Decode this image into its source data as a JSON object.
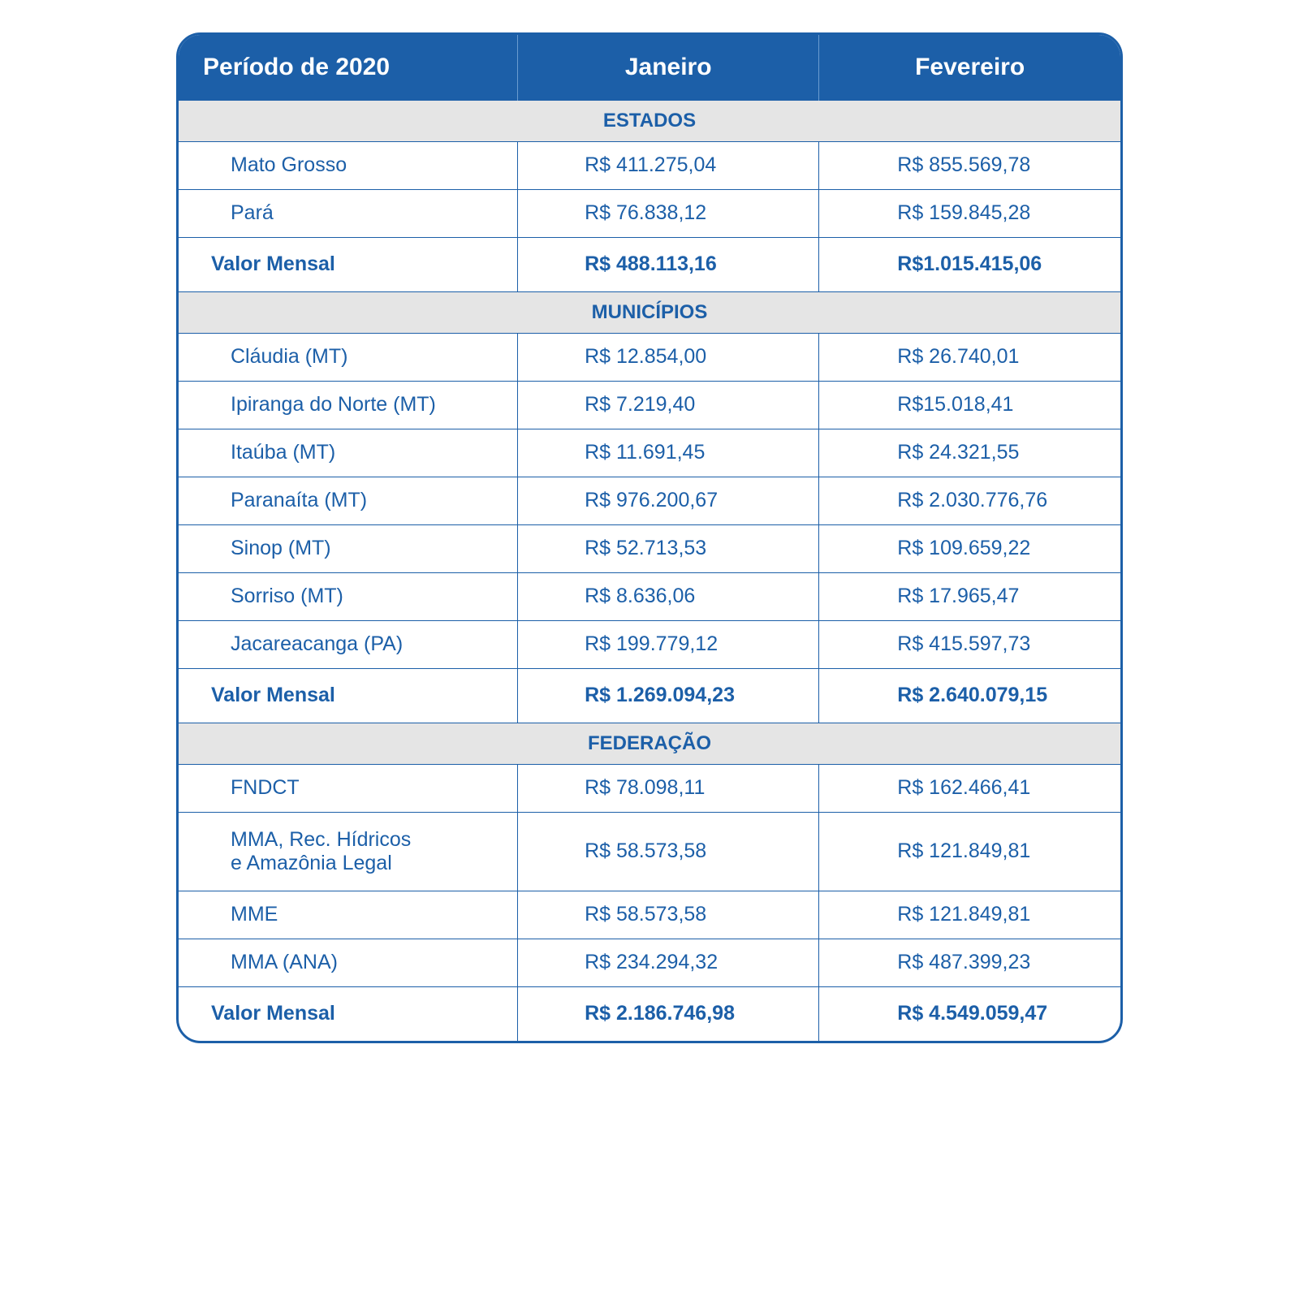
{
  "header": {
    "period": "Período de 2020",
    "col1": "Janeiro",
    "col2": "Fevereiro"
  },
  "sections": [
    {
      "title": "ESTADOS",
      "rows": [
        {
          "name": "Mato Grosso",
          "jan": "R$ 411.275,04",
          "fev": "R$ 855.569,78"
        },
        {
          "name": "Pará",
          "jan": "R$ 76.838,12",
          "fev": "R$ 159.845,28"
        }
      ],
      "total": {
        "label": "Valor Mensal",
        "jan": "R$ 488.113,16",
        "fev": "R$1.015.415,06"
      }
    },
    {
      "title": "MUNICÍPIOS",
      "rows": [
        {
          "name": "Cláudia (MT)",
          "jan": "R$ 12.854,00",
          "fev": "R$ 26.740,01"
        },
        {
          "name": "Ipiranga do Norte (MT)",
          "jan": "R$ 7.219,40",
          "fev": "R$15.018,41"
        },
        {
          "name": "Itaúba (MT)",
          "jan": "R$ 11.691,45",
          "fev": "R$ 24.321,55"
        },
        {
          "name": "Paranaíta (MT)",
          "jan": "R$ 976.200,67",
          "fev": "R$ 2.030.776,76"
        },
        {
          "name": "Sinop (MT)",
          "jan": "R$ 52.713,53",
          "fev": "R$ 109.659,22"
        },
        {
          "name": "Sorriso (MT)",
          "jan": "R$ 8.636,06",
          "fev": "R$ 17.965,47"
        },
        {
          "name": "Jacareacanga (PA)",
          "jan": "R$ 199.779,12",
          "fev": "R$ 415.597,73"
        }
      ],
      "total": {
        "label": "Valor Mensal",
        "jan": "R$ 1.269.094,23",
        "fev": "R$ 2.640.079,15"
      }
    },
    {
      "title": "FEDERAÇÃO",
      "rows": [
        {
          "name": "FNDCT",
          "jan": "R$ 78.098,11",
          "fev": "R$ 162.466,41"
        },
        {
          "name": "MMA, Rec. Hídricos\ne Amazônia Legal",
          "jan": "R$ 58.573,58",
          "fev": "R$ 121.849,81",
          "tall": true
        },
        {
          "name": "MME",
          "jan": "R$ 58.573,58",
          "fev": "R$ 121.849,81"
        },
        {
          "name": "MMA (ANA)",
          "jan": "R$ 234.294,32",
          "fev": "R$ 487.399,23"
        }
      ],
      "total": {
        "label": "Valor Mensal",
        "jan": "R$ 2.186.746,98",
        "fev": "R$ 4.549.059,47"
      }
    }
  ],
  "style": {
    "accent": "#1c5fa8",
    "section_bg": "#e5e5e5",
    "header_fontsize": 30,
    "row_fontsize": 25,
    "section_fontsize": 24,
    "border_radius": 30
  }
}
